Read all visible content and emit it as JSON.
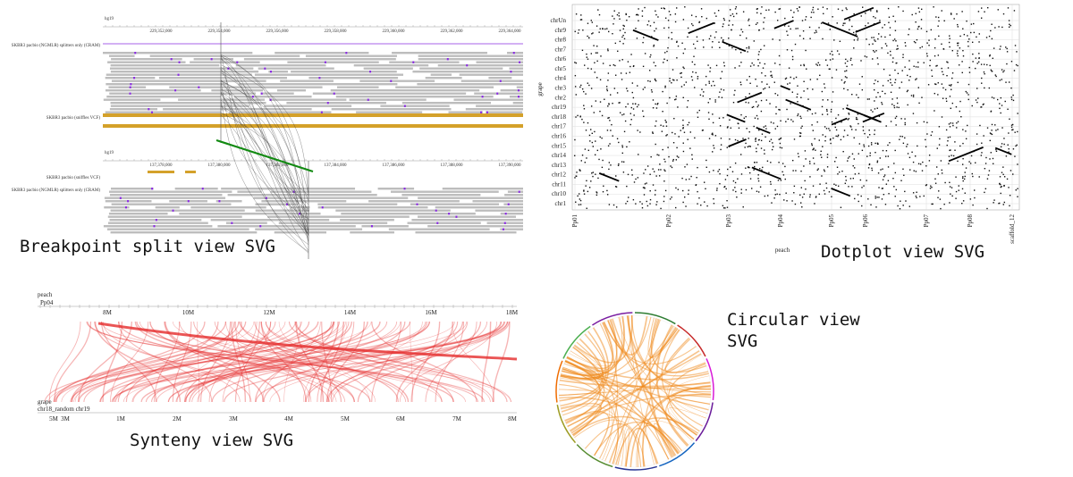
{
  "breakpoint": {
    "caption": "Breakpoint split view SVG",
    "top": {
      "assembly": "hg19",
      "ticks": [
        "229,352,000",
        "229,354,000",
        "229,356,000",
        "229,358,000",
        "229,360,000",
        "229,362,000",
        "229,364,000"
      ],
      "tracks": [
        "SKBR3 pacbio (NGMLR) splitters only (CRAM)",
        "SKBR3 pacbio (sniffles VCF)"
      ]
    },
    "bottom": {
      "assembly": "hg19",
      "ticks": [
        "137,378,000",
        "137,380,000",
        "137,382,000",
        "137,384,000",
        "137,386,000",
        "137,388,000",
        "137,390,000"
      ],
      "tracks": [
        "SKBR3 pacbio (sniffles VCF)",
        "SKBR3 pacbio (NGMLR) splitters only (CRAM)"
      ]
    }
  },
  "dotplot": {
    "caption": "Dotplot view SVG",
    "y_axis": "grape",
    "x_axis": "peach",
    "y_labels": [
      "chrUn",
      "chr9",
      "chr8",
      "chr7",
      "chr6",
      "chr5",
      "chr4",
      "chr3",
      "chr2",
      "chr19",
      "chr18",
      "chr17",
      "chr16",
      "chr15",
      "chr14",
      "chr13",
      "chr12",
      "chr11",
      "chr10",
      "chr1"
    ],
    "x_labels": [
      "Pp01",
      "Pp02",
      "Pp03",
      "Pp04",
      "Pp05",
      "Pp06",
      "Pp07",
      "Pp08",
      "scaffold_12"
    ]
  },
  "synteny": {
    "caption": "Synteny view SVG",
    "top_assembly": "peach",
    "top_region": "Pp04",
    "top_ticks": [
      "8M",
      "10M",
      "12M",
      "14M",
      "16M",
      "18M"
    ],
    "bottom_assembly": "grape",
    "bottom_region": "chr18_random chr19",
    "bottom_ticks": [
      "5M",
      "3M",
      "1M",
      "2M",
      "3M",
      "4M",
      "5M",
      "6M",
      "7M",
      "8M"
    ]
  },
  "circular": {
    "caption": [
      "Circular view",
      "SVG"
    ]
  }
}
